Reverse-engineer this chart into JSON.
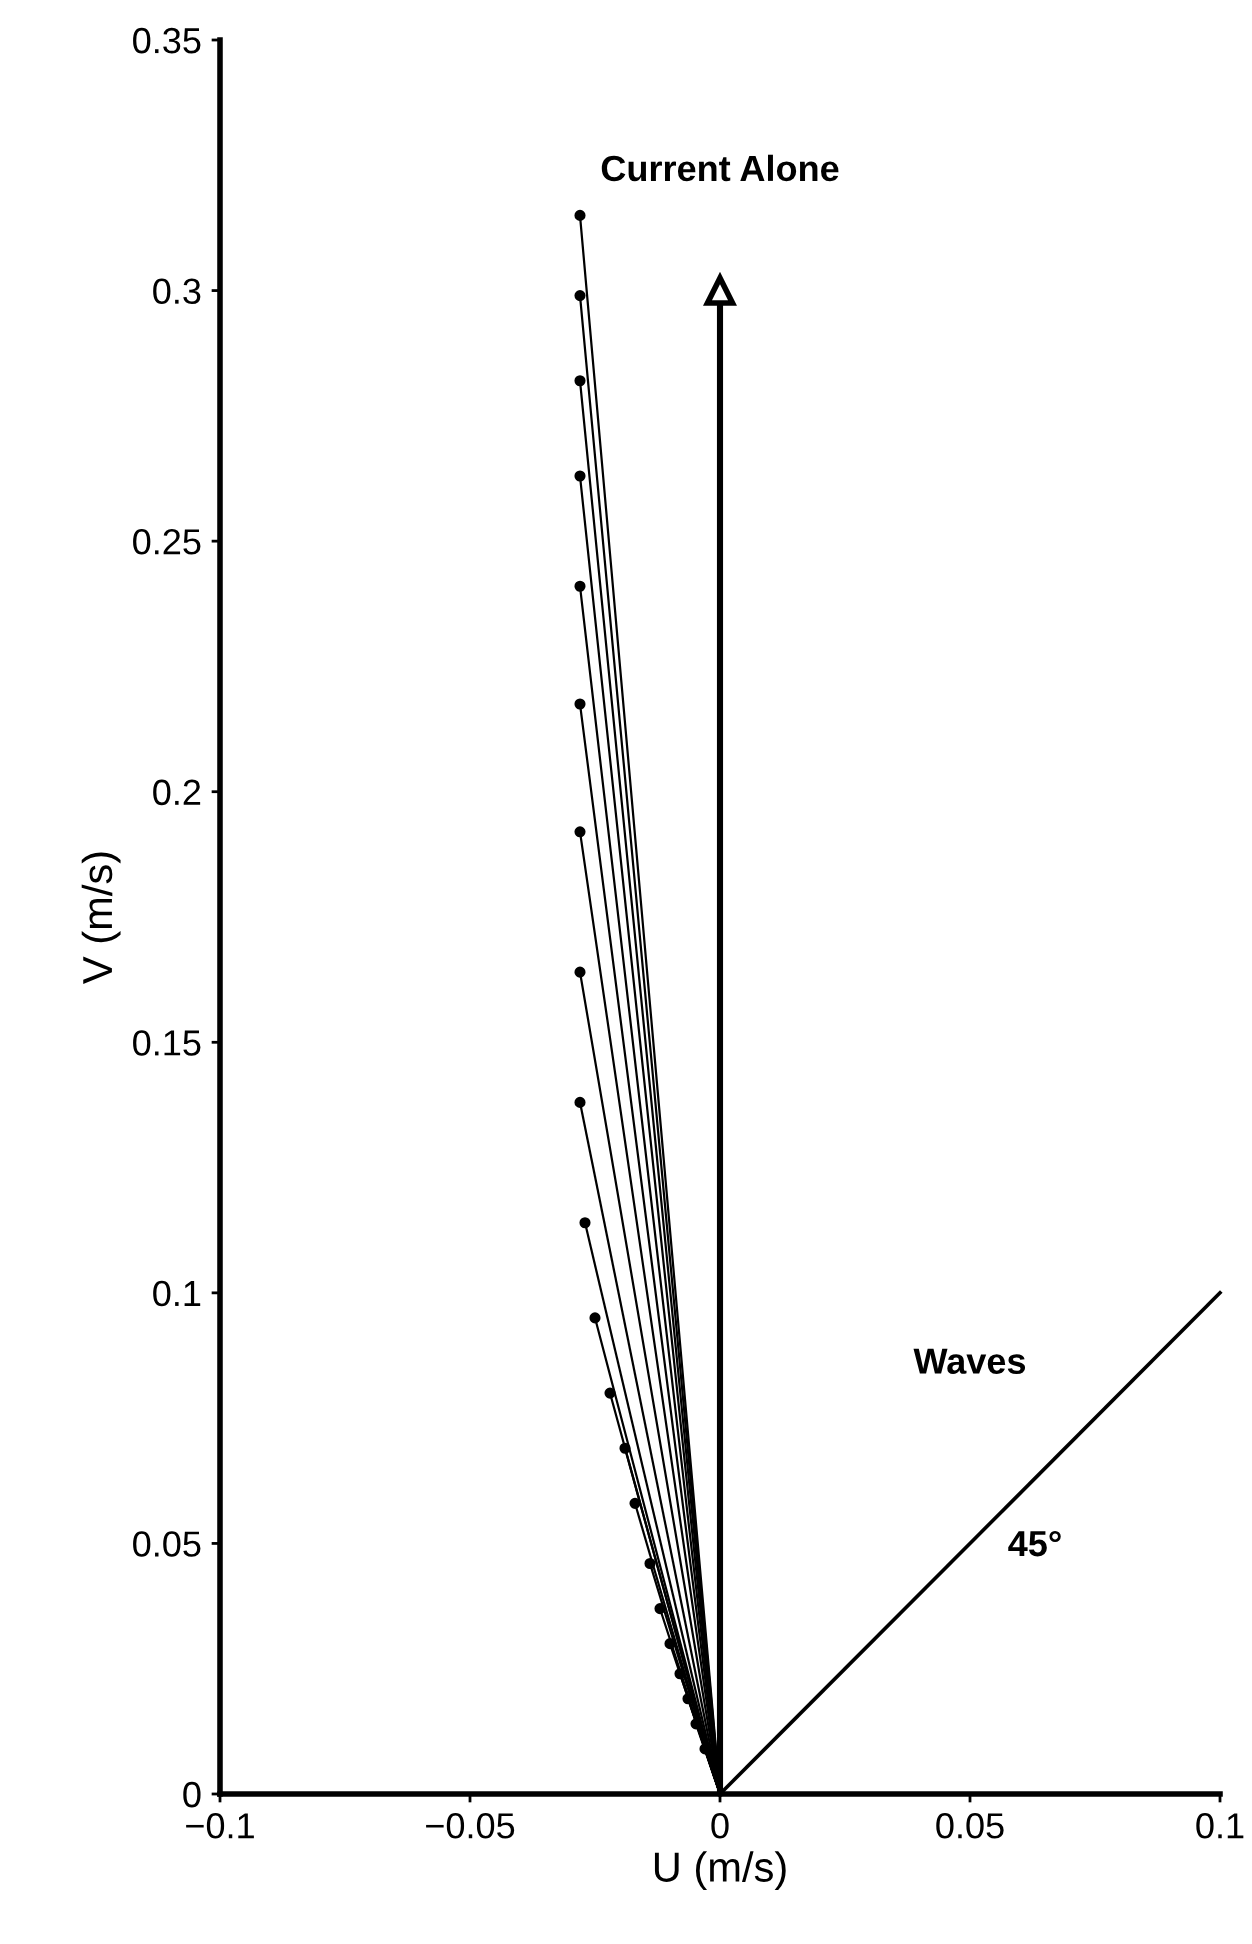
{
  "chart_data": {
    "type": "line",
    "xlabel": "U (m/s)",
    "ylabel": "V (m/s)",
    "xlim": [
      -0.1,
      0.1
    ],
    "ylim": [
      0,
      0.35
    ],
    "xticks": [
      {
        "value": -0.1,
        "label": "−0.1"
      },
      {
        "value": -0.05,
        "label": "−0.05"
      },
      0,
      0.05,
      0.1
    ],
    "yticks": [
      0,
      0.05,
      0.1,
      0.15,
      0.2,
      0.25,
      0.3,
      0.35
    ],
    "grid": false,
    "legend": false,
    "marker": "circle",
    "line_style": "solid",
    "series": [
      {
        "color": "#000000",
        "x": [
          0,
          -0.028
        ],
        "values": [
          0,
          0.315
        ]
      },
      {
        "color": "#000000",
        "x": [
          0,
          -0.028
        ],
        "values": [
          0,
          0.299
        ]
      },
      {
        "color": "#000000",
        "x": [
          0,
          -0.028
        ],
        "values": [
          0,
          0.282
        ]
      },
      {
        "color": "#000000",
        "x": [
          0,
          -0.028
        ],
        "values": [
          0,
          0.263
        ]
      },
      {
        "color": "#000000",
        "x": [
          0,
          -0.028
        ],
        "values": [
          0,
          0.241
        ]
      },
      {
        "color": "#000000",
        "x": [
          0,
          -0.028
        ],
        "values": [
          0,
          0.2175
        ]
      },
      {
        "color": "#000000",
        "x": [
          0,
          -0.028
        ],
        "values": [
          0,
          0.192
        ]
      },
      {
        "color": "#000000",
        "x": [
          0,
          -0.028
        ],
        "values": [
          0,
          0.164
        ]
      },
      {
        "color": "#000000",
        "x": [
          0,
          -0.028
        ],
        "values": [
          0,
          0.138
        ]
      },
      {
        "color": "#000000",
        "x": [
          0,
          -0.027
        ],
        "values": [
          0,
          0.114
        ]
      },
      {
        "color": "#000000",
        "x": [
          0,
          -0.025
        ],
        "values": [
          0,
          0.095
        ]
      },
      {
        "color": "#000000",
        "x": [
          0,
          -0.022
        ],
        "values": [
          0,
          0.08
        ]
      },
      {
        "color": "#000000",
        "x": [
          0,
          -0.019
        ],
        "values": [
          0,
          0.069
        ]
      },
      {
        "color": "#000000",
        "x": [
          0,
          -0.017
        ],
        "values": [
          0,
          0.058
        ]
      },
      {
        "color": "#000000",
        "x": [
          0,
          -0.014
        ],
        "values": [
          0,
          0.046
        ]
      },
      {
        "color": "#000000",
        "x": [
          0,
          -0.012
        ],
        "values": [
          0,
          0.037
        ]
      },
      {
        "color": "#000000",
        "x": [
          0,
          -0.01
        ],
        "values": [
          0,
          0.03
        ]
      },
      {
        "color": "#000000",
        "x": [
          0,
          -0.008
        ],
        "values": [
          0,
          0.024
        ]
      },
      {
        "color": "#000000",
        "x": [
          0,
          -0.0064
        ],
        "values": [
          0,
          0.019
        ]
      },
      {
        "color": "#000000",
        "x": [
          0,
          -0.0048
        ],
        "values": [
          0,
          0.014
        ]
      },
      {
        "color": "#000000",
        "x": [
          0,
          -0.003
        ],
        "values": [
          0,
          0.009
        ]
      },
      {
        "color": "#000000",
        "x": [
          0,
          0
        ],
        "values": [
          0,
          0.3
        ],
        "marker": "triangle"
      },
      {
        "color": "#000000",
        "x": [
          0,
          0.1
        ],
        "values": [
          0,
          0.1
        ],
        "marker": "none"
      }
    ],
    "annotations": [
      "Current Alone",
      "Waves",
      "45°"
    ]
  }
}
